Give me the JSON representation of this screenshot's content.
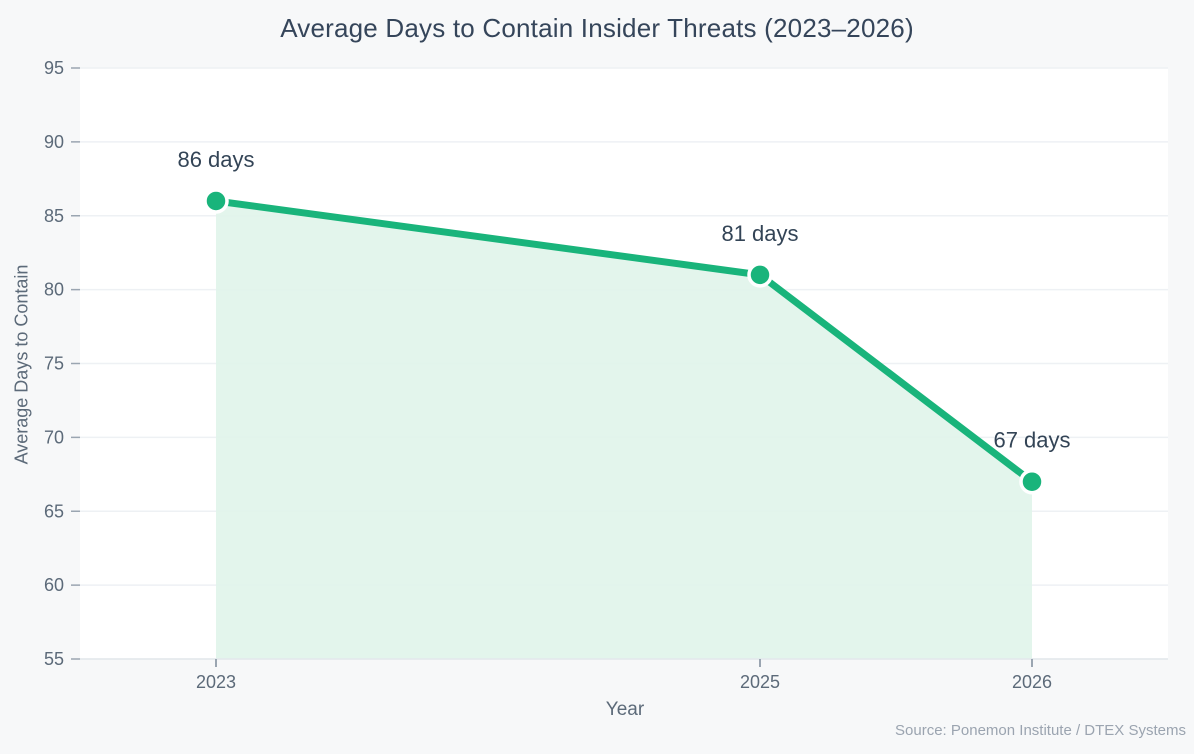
{
  "title": "Average Days to Contain Insider Threats (2023–2026)",
  "source_note": "Source: Ponemon Institute / DTEX Systems",
  "colors": {
    "background": "#f7f8f9",
    "plot_background": "#ffffff",
    "grid": "#eef1f4",
    "axis_spine": "#e3e8ec",
    "tick_mark": "#9aa5b1",
    "line": "#19b47b",
    "marker": "#19b47b",
    "marker_ring": "#ffffff",
    "area_fill": "#e0f4ea",
    "title_text": "#35455a",
    "data_label_text": "#334456",
    "axis_text": "#5c6a79",
    "source_text": "#9ba4b0"
  },
  "chart_data": {
    "type": "line",
    "title": "Average Days to Contain Insider Threats (2023–2026)",
    "xlabel": "Year",
    "ylabel": "Average Days to Contain",
    "x": [
      2023,
      2025,
      2026
    ],
    "values": [
      86,
      81,
      67
    ],
    "point_labels": [
      "86 days",
      "81 days",
      "67 days"
    ],
    "xticks": [
      2023,
      2025,
      2026
    ],
    "xtick_labels": [
      "2023",
      "2025",
      "2026"
    ],
    "yticks": [
      55,
      60,
      65,
      70,
      75,
      80,
      85,
      90,
      95
    ],
    "xlim": [
      2022.5,
      2026.5
    ],
    "ylim": [
      55,
      95
    ],
    "grid": "horizontal",
    "area_fill": true,
    "legend": "none"
  }
}
